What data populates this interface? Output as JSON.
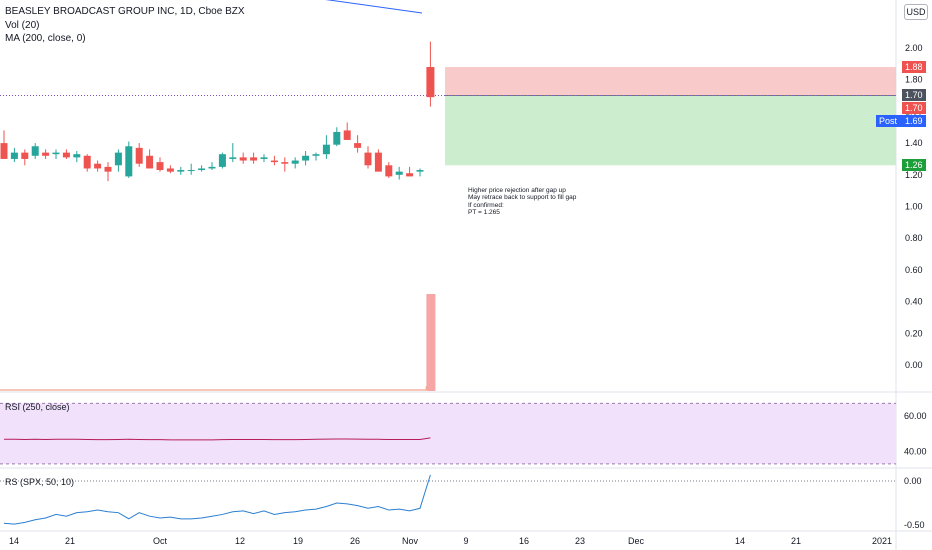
{
  "header": {
    "symbol_line": "BEASLEY BROADCAST GROUP INC, 1D, Cboe BZX",
    "vol_label": "Vol (20)",
    "ma_label": "MA (200, close, 0)",
    "currency": "USD"
  },
  "annotation": "Higher price rejection after gap up\nMay retrace back to support to fill gap\nIf confirmed:\nPT = 1.265",
  "price_tags": {
    "target_top": "1.88",
    "current": "1.70",
    "close": "1.70",
    "post_label": "Post",
    "post_value": "1.69",
    "target_bottom": "1.26"
  },
  "colors": {
    "up": "#26a69a",
    "down": "#ef5350",
    "ma_line": "#2962ff",
    "rsi_line": "#b71c5c",
    "rs_line": "#2a7fd1",
    "stop_zone": "#f7c1c1",
    "target_zone": "#c8ecc9",
    "rsi_band": "#f1e1fa",
    "volume_bar": "#f5a6a5",
    "post_tag": "#2962ff",
    "dark_tag": "#4c525e",
    "green_tag": "#1e9e3a"
  },
  "chart_data": [
    {
      "type": "candlestick",
      "y_axis_ticks": [
        "2.00",
        "1.80",
        "1.60",
        "1.40",
        "1.20",
        "1.00",
        "0.80",
        "0.60",
        "0.40",
        "0.20",
        "0.00"
      ],
      "x_axis_ticks": [
        "14",
        "21",
        "Oct",
        "12",
        "19",
        "26",
        "Nov",
        "9",
        "16",
        "23",
        "Dec",
        "14",
        "21",
        "2021"
      ],
      "ylim": [
        -0.05,
        2.1
      ],
      "candles": [
        {
          "o": 1.4,
          "h": 1.48,
          "l": 1.3,
          "c": 1.3
        },
        {
          "o": 1.3,
          "h": 1.37,
          "l": 1.28,
          "c": 1.34
        },
        {
          "o": 1.34,
          "h": 1.36,
          "l": 1.26,
          "c": 1.3
        },
        {
          "o": 1.32,
          "h": 1.4,
          "l": 1.3,
          "c": 1.38
        },
        {
          "o": 1.34,
          "h": 1.36,
          "l": 1.3,
          "c": 1.32
        },
        {
          "o": 1.33,
          "h": 1.36,
          "l": 1.3,
          "c": 1.34
        },
        {
          "o": 1.34,
          "h": 1.36,
          "l": 1.3,
          "c": 1.31
        },
        {
          "o": 1.31,
          "h": 1.35,
          "l": 1.28,
          "c": 1.33
        },
        {
          "o": 1.32,
          "h": 1.33,
          "l": 1.22,
          "c": 1.24
        },
        {
          "o": 1.27,
          "h": 1.29,
          "l": 1.22,
          "c": 1.24
        },
        {
          "o": 1.25,
          "h": 1.28,
          "l": 1.16,
          "c": 1.22
        },
        {
          "o": 1.26,
          "h": 1.36,
          "l": 1.22,
          "c": 1.34
        },
        {
          "o": 1.19,
          "h": 1.41,
          "l": 1.18,
          "c": 1.38
        },
        {
          "o": 1.37,
          "h": 1.4,
          "l": 1.25,
          "c": 1.27
        },
        {
          "o": 1.32,
          "h": 1.36,
          "l": 1.24,
          "c": 1.24
        },
        {
          "o": 1.28,
          "h": 1.31,
          "l": 1.22,
          "c": 1.23
        },
        {
          "o": 1.24,
          "h": 1.26,
          "l": 1.21,
          "c": 1.22
        },
        {
          "o": 1.22,
          "h": 1.25,
          "l": 1.2,
          "c": 1.23
        },
        {
          "o": 1.23,
          "h": 1.27,
          "l": 1.2,
          "c": 1.23
        },
        {
          "o": 1.23,
          "h": 1.26,
          "l": 1.22,
          "c": 1.24
        },
        {
          "o": 1.24,
          "h": 1.28,
          "l": 1.23,
          "c": 1.25
        },
        {
          "o": 1.25,
          "h": 1.34,
          "l": 1.24,
          "c": 1.33
        },
        {
          "o": 1.3,
          "h": 1.4,
          "l": 1.28,
          "c": 1.31
        },
        {
          "o": 1.31,
          "h": 1.34,
          "l": 1.27,
          "c": 1.29
        },
        {
          "o": 1.31,
          "h": 1.34,
          "l": 1.27,
          "c": 1.29
        },
        {
          "o": 1.3,
          "h": 1.33,
          "l": 1.28,
          "c": 1.31
        },
        {
          "o": 1.29,
          "h": 1.32,
          "l": 1.26,
          "c": 1.28
        },
        {
          "o": 1.28,
          "h": 1.31,
          "l": 1.22,
          "c": 1.27
        },
        {
          "o": 1.27,
          "h": 1.31,
          "l": 1.24,
          "c": 1.29
        },
        {
          "o": 1.29,
          "h": 1.35,
          "l": 1.26,
          "c": 1.32
        },
        {
          "o": 1.32,
          "h": 1.34,
          "l": 1.29,
          "c": 1.33
        },
        {
          "o": 1.33,
          "h": 1.45,
          "l": 1.3,
          "c": 1.39
        },
        {
          "o": 1.39,
          "h": 1.5,
          "l": 1.38,
          "c": 1.47
        },
        {
          "o": 1.48,
          "h": 1.53,
          "l": 1.42,
          "c": 1.42
        },
        {
          "o": 1.4,
          "h": 1.45,
          "l": 1.34,
          "c": 1.37
        },
        {
          "o": 1.34,
          "h": 1.38,
          "l": 1.24,
          "c": 1.26
        },
        {
          "o": 1.34,
          "h": 1.36,
          "l": 1.22,
          "c": 1.22
        },
        {
          "o": 1.26,
          "h": 1.28,
          "l": 1.18,
          "c": 1.19
        },
        {
          "o": 1.2,
          "h": 1.25,
          "l": 1.17,
          "c": 1.22
        },
        {
          "o": 1.21,
          "h": 1.25,
          "l": 1.19,
          "c": 1.19
        },
        {
          "o": 1.22,
          "h": 1.24,
          "l": 1.19,
          "c": 1.23
        },
        {
          "o": 1.88,
          "h": 2.04,
          "l": 1.63,
          "c": 1.69
        }
      ],
      "ma_segment": [
        {
          "price": 2.39
        },
        {
          "price": 2.36
        }
      ],
      "position": {
        "stop": 1.88,
        "entry": 1.7,
        "target": 1.26
      }
    },
    {
      "type": "bar",
      "name": "Vol (20)",
      "values": [
        0,
        0,
        0,
        0,
        0,
        0,
        0,
        0,
        0,
        0,
        0,
        0,
        0,
        0,
        0,
        0,
        0,
        0,
        0,
        0,
        0,
        0,
        0,
        0,
        0,
        0,
        0,
        0,
        0,
        0,
        0,
        0,
        0,
        0,
        0,
        0,
        0,
        0,
        0,
        0,
        0,
        1
      ]
    },
    {
      "type": "line",
      "title": "RSI (250, close)",
      "y_axis_ticks": [
        "60.00",
        "40.00"
      ],
      "ylim": [
        30,
        70
      ],
      "band": [
        33,
        67
      ],
      "values": [
        46.8,
        46.8,
        46.7,
        46.8,
        46.7,
        46.8,
        46.8,
        46.8,
        46.7,
        46.6,
        46.6,
        46.7,
        46.8,
        46.7,
        46.6,
        46.6,
        46.5,
        46.5,
        46.5,
        46.5,
        46.5,
        46.6,
        46.7,
        46.7,
        46.7,
        46.7,
        46.6,
        46.6,
        46.6,
        46.7,
        46.8,
        46.9,
        47.0,
        47.0,
        46.9,
        46.8,
        46.8,
        46.7,
        46.7,
        46.7,
        46.7,
        47.6
      ]
    },
    {
      "type": "line",
      "title": "RS (SPX, 50, 10)",
      "y_axis_ticks": [
        "0.00",
        "-0.50"
      ],
      "ylim": [
        -0.55,
        0.05
      ],
      "values": [
        -0.48,
        -0.49,
        -0.47,
        -0.44,
        -0.42,
        -0.38,
        -0.4,
        -0.36,
        -0.35,
        -0.33,
        -0.35,
        -0.36,
        -0.43,
        -0.36,
        -0.4,
        -0.42,
        -0.41,
        -0.43,
        -0.43,
        -0.42,
        -0.4,
        -0.38,
        -0.35,
        -0.34,
        -0.37,
        -0.34,
        -0.38,
        -0.36,
        -0.35,
        -0.33,
        -0.32,
        -0.29,
        -0.25,
        -0.26,
        -0.28,
        -0.31,
        -0.29,
        -0.33,
        -0.32,
        -0.34,
        -0.31,
        0.07
      ]
    }
  ]
}
